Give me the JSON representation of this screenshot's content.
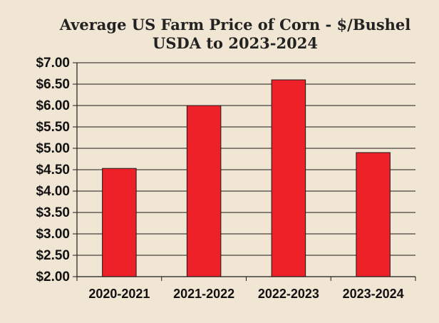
{
  "chart_data": {
    "type": "bar",
    "title": "Average US Farm Price of Corn - $/Bushel",
    "subtitle": "USDA to 2023-2024",
    "categories": [
      "2020-2021",
      "2021-2022",
      "2022-2023",
      "2023-2024"
    ],
    "values": [
      4.53,
      6.0,
      6.6,
      4.9
    ],
    "ylim": [
      2.0,
      7.0
    ],
    "yticks": [
      "$2.00",
      "$2.50",
      "$3.00",
      "$3.50",
      "$4.00",
      "$4.50",
      "$5.00",
      "$5.50",
      "$6.00",
      "$6.50",
      "$7.00"
    ],
    "xlabel": "",
    "ylabel": "",
    "grid": true,
    "legend": "none",
    "colors": {
      "bar": "#EE2128",
      "bar_edge": "#1A1A1A",
      "background": "#F1E6D4",
      "gridline": "#1A1A1A"
    }
  }
}
